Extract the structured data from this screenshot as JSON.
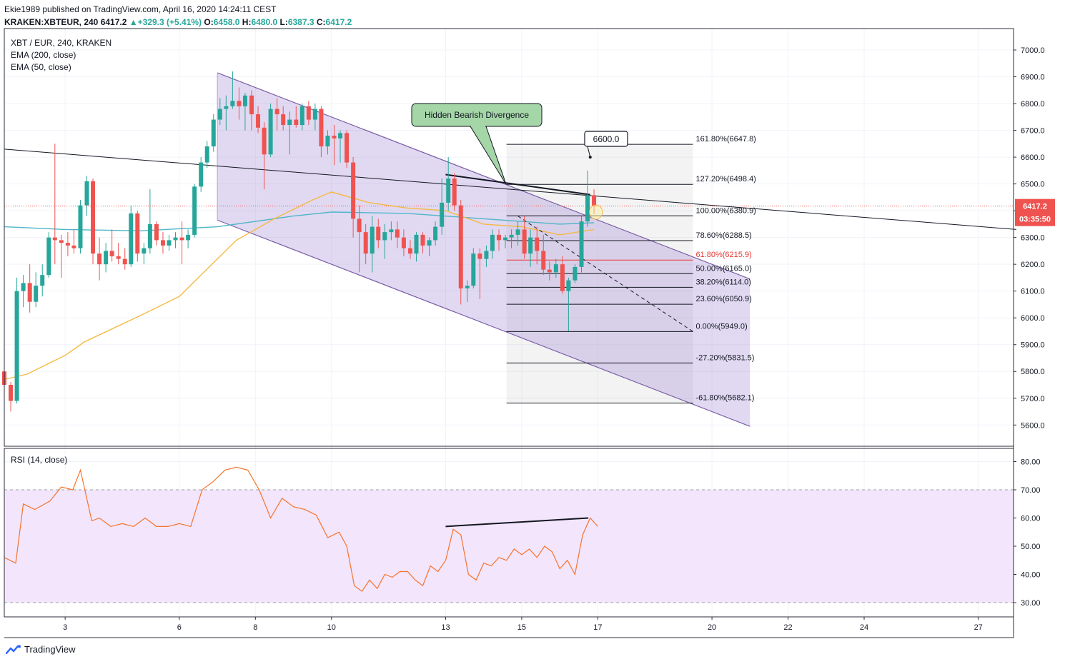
{
  "header": {
    "publisher": "Ekie1989 published on TradingView.com, April 16, 2020 14:24:11 CEST",
    "symbol": "KRAKEN:XBTEUR, 240",
    "last": "6417.2",
    "change": "+329.3 (+5.41%)",
    "o_label": "O:",
    "o_value": "6458.0",
    "h_label": "H:",
    "h_value": "6480.0",
    "l_label": "L:",
    "l_value": "6387.3",
    "c_label": "C:",
    "c_value": "6417.2"
  },
  "legend": {
    "title": "XBT / EUR, 240, KRAKEN",
    "ema200": "EMA (200, close)",
    "ema50": "EMA (50, close)",
    "rsi": "RSI (14, close)"
  },
  "annotations": {
    "callout": "Hidden Bearish Divergence",
    "target": "6600.0"
  },
  "price_badge": {
    "price": "6417.2",
    "countdown": "03:35:50"
  },
  "footer": {
    "brand": "TradingView"
  },
  "colors": {
    "up": "#26a69a",
    "down": "#ef5350",
    "ema200": "#4fb6c9",
    "ema50": "#f5b942",
    "channel": "#7b5ea7",
    "rsi": "#f5742e",
    "rsi_band": "#f3e5fb",
    "fib618": "#e53935"
  },
  "chart_data": [
    {
      "type": "candlestick",
      "title": "XBT / EUR, 240, KRAKEN",
      "ylim": [
        5550,
        7050
      ],
      "y_ticks": [
        "7000.0",
        "6900.0",
        "6800.0",
        "6700.0",
        "6600.0",
        "6500.0",
        "6400.0",
        "6300.0",
        "6200.0",
        "6100.0",
        "6000.0",
        "5900.0",
        "5800.0",
        "5700.0",
        "5600.0"
      ],
      "y_tick_values": [
        7000,
        6900,
        6800,
        6700,
        6600,
        6500,
        6400,
        6300,
        6200,
        6100,
        6000,
        5900,
        5800,
        5700,
        5600
      ],
      "x_ticks": [
        "3",
        "6",
        "8",
        "10",
        "13",
        "15",
        "17",
        "20",
        "22",
        "24",
        "27"
      ],
      "x_tick_days": [
        3,
        6,
        8,
        10,
        13,
        15,
        17,
        20,
        22,
        24,
        27
      ],
      "x_range_days": [
        1.4,
        28.0
      ],
      "candles": [
        [
          1.4,
          5800,
          5820,
          5720,
          5750
        ],
        [
          1.57,
          5750,
          5760,
          5650,
          5690
        ],
        [
          1.73,
          5690,
          6150,
          5680,
          6100
        ],
        [
          1.9,
          6100,
          6160,
          6040,
          6130
        ],
        [
          2.07,
          6130,
          6200,
          6020,
          6060
        ],
        [
          2.23,
          6060,
          6170,
          6040,
          6120
        ],
        [
          2.4,
          6120,
          6200,
          6080,
          6160
        ],
        [
          2.57,
          6160,
          6320,
          6150,
          6300
        ],
        [
          2.73,
          6300,
          6650,
          6200,
          6290
        ],
        [
          2.9,
          6290,
          6310,
          6150,
          6280
        ],
        [
          3.07,
          6280,
          6320,
          6230,
          6270
        ],
        [
          3.23,
          6270,
          6330,
          6240,
          6260
        ],
        [
          3.4,
          6260,
          6440,
          6240,
          6420
        ],
        [
          3.57,
          6420,
          6530,
          6380,
          6510
        ],
        [
          3.73,
          6510,
          6520,
          6200,
          6240
        ],
        [
          3.9,
          6240,
          6300,
          6140,
          6200
        ],
        [
          4.07,
          6200,
          6280,
          6170,
          6250
        ],
        [
          4.23,
          6250,
          6330,
          6210,
          6230
        ],
        [
          4.4,
          6230,
          6280,
          6200,
          6220
        ],
        [
          4.57,
          6220,
          6260,
          6180,
          6200
        ],
        [
          4.73,
          6200,
          6420,
          6190,
          6390
        ],
        [
          4.9,
          6390,
          6400,
          6210,
          6240
        ],
        [
          5.07,
          6240,
          6280,
          6200,
          6260
        ],
        [
          5.23,
          6260,
          6480,
          6240,
          6350
        ],
        [
          5.4,
          6350,
          6360,
          6270,
          6290
        ],
        [
          5.57,
          6290,
          6320,
          6240,
          6270
        ],
        [
          5.73,
          6270,
          6310,
          6250,
          6290
        ],
        [
          5.9,
          6290,
          6320,
          6260,
          6300
        ],
        [
          6.07,
          6300,
          6360,
          6200,
          6290
        ],
        [
          6.23,
          6290,
          6330,
          6260,
          6310
        ],
        [
          6.4,
          6310,
          6500,
          6300,
          6490
        ],
        [
          6.57,
          6490,
          6600,
          6470,
          6580
        ],
        [
          6.73,
          6580,
          6660,
          6560,
          6640
        ],
        [
          6.9,
          6640,
          6760,
          6620,
          6740
        ],
        [
          7.07,
          6740,
          6820,
          6720,
          6780
        ],
        [
          7.23,
          6780,
          6830,
          6700,
          6790
        ],
        [
          7.4,
          6790,
          6920,
          6780,
          6810
        ],
        [
          7.57,
          6810,
          6860,
          6740,
          6790
        ],
        [
          7.73,
          6790,
          6840,
          6700,
          6830
        ],
        [
          7.9,
          6830,
          6850,
          6700,
          6760
        ],
        [
          8.07,
          6760,
          6790,
          6690,
          6710
        ],
        [
          8.23,
          6710,
          6730,
          6480,
          6610
        ],
        [
          8.4,
          6610,
          6800,
          6600,
          6780
        ],
        [
          8.57,
          6780,
          6820,
          6700,
          6760
        ],
        [
          8.73,
          6760,
          6790,
          6700,
          6720
        ],
        [
          8.9,
          6720,
          6770,
          6610,
          6740
        ],
        [
          9.07,
          6740,
          6790,
          6710,
          6720
        ],
        [
          9.23,
          6720,
          6800,
          6700,
          6790
        ],
        [
          9.4,
          6790,
          6810,
          6720,
          6740
        ],
        [
          9.57,
          6740,
          6800,
          6700,
          6780
        ],
        [
          9.73,
          6780,
          6790,
          6600,
          6640
        ],
        [
          9.9,
          6640,
          6700,
          6610,
          6680
        ],
        [
          10.07,
          6680,
          6720,
          6570,
          6670
        ],
        [
          10.23,
          6670,
          6700,
          6580,
          6690
        ],
        [
          10.4,
          6690,
          6700,
          6560,
          6580
        ],
        [
          10.57,
          6580,
          6600,
          6300,
          6370
        ],
        [
          10.73,
          6370,
          6420,
          6170,
          6320
        ],
        [
          10.9,
          6320,
          6350,
          6200,
          6240
        ],
        [
          11.07,
          6240,
          6380,
          6170,
          6340
        ],
        [
          11.23,
          6340,
          6370,
          6260,
          6290
        ],
        [
          11.4,
          6290,
          6350,
          6220,
          6320
        ],
        [
          11.57,
          6320,
          6360,
          6290,
          6330
        ],
        [
          11.73,
          6330,
          6360,
          6260,
          6300
        ],
        [
          11.9,
          6300,
          6330,
          6230,
          6260
        ],
        [
          12.07,
          6260,
          6290,
          6220,
          6240
        ],
        [
          12.23,
          6240,
          6320,
          6210,
          6310
        ],
        [
          12.4,
          6310,
          6320,
          6240,
          6270
        ],
        [
          12.57,
          6270,
          6300,
          6230,
          6290
        ],
        [
          12.73,
          6290,
          6360,
          6270,
          6340
        ],
        [
          12.9,
          6340,
          6520,
          6310,
          6430
        ],
        [
          13.07,
          6430,
          6600,
          6400,
          6520
        ],
        [
          13.23,
          6520,
          6540,
          6400,
          6420
        ],
        [
          13.4,
          6420,
          6440,
          6050,
          6110
        ],
        [
          13.57,
          6110,
          6140,
          6060,
          6120
        ],
        [
          13.73,
          6120,
          6260,
          6110,
          6240
        ],
        [
          13.9,
          6240,
          6260,
          6070,
          6220
        ],
        [
          14.07,
          6220,
          6270,
          6190,
          6250
        ],
        [
          14.23,
          6250,
          6330,
          6220,
          6310
        ],
        [
          14.4,
          6310,
          6330,
          6250,
          6290
        ],
        [
          14.57,
          6290,
          6310,
          6260,
          6300
        ],
        [
          14.73,
          6300,
          6330,
          6260,
          6310
        ],
        [
          14.9,
          6310,
          6360,
          6270,
          6330
        ],
        [
          15.07,
          6330,
          6380,
          6220,
          6240
        ],
        [
          15.23,
          6240,
          6330,
          6190,
          6300
        ],
        [
          15.4,
          6300,
          6340,
          6200,
          6250
        ],
        [
          15.57,
          6250,
          6310,
          6160,
          6180
        ],
        [
          15.73,
          6180,
          6210,
          6140,
          6170
        ],
        [
          15.9,
          6170,
          6220,
          6150,
          6200
        ],
        [
          16.07,
          6200,
          6230,
          6090,
          6100
        ],
        [
          16.23,
          6100,
          6150,
          5950,
          6140
        ],
        [
          16.4,
          6140,
          6200,
          6130,
          6190
        ],
        [
          16.57,
          6190,
          6380,
          6170,
          6360
        ],
        [
          16.73,
          6360,
          6550,
          6340,
          6458
        ],
        [
          16.9,
          6458,
          6480,
          6387,
          6417
        ]
      ],
      "ema200": [
        [
          1.4,
          6340
        ],
        [
          3,
          6330
        ],
        [
          5,
          6325
        ],
        [
          7,
          6340
        ],
        [
          9,
          6380
        ],
        [
          10,
          6395
        ],
        [
          12,
          6390
        ],
        [
          14,
          6370
        ],
        [
          16,
          6350
        ],
        [
          16.9,
          6355
        ]
      ],
      "ema50": [
        [
          1.4,
          5770
        ],
        [
          2,
          5790
        ],
        [
          3,
          5860
        ],
        [
          3.5,
          5910
        ],
        [
          5,
          6010
        ],
        [
          6,
          6080
        ],
        [
          6.5,
          6150
        ],
        [
          7.5,
          6290
        ],
        [
          8.5,
          6370
        ],
        [
          9.5,
          6440
        ],
        [
          10,
          6470
        ],
        [
          11,
          6430
        ],
        [
          12,
          6410
        ],
        [
          13,
          6400
        ],
        [
          14,
          6350
        ],
        [
          15,
          6340
        ],
        [
          16,
          6310
        ],
        [
          16.9,
          6330
        ]
      ],
      "channel": {
        "upper": [
          [
            7.0,
            6915
          ],
          [
            19.5,
            6200
          ]
        ],
        "lower": [
          [
            7.0,
            6365
          ],
          [
            19.5,
            5650
          ]
        ],
        "right_edge": [
          [
            21.0,
            6145
          ],
          [
            21.0,
            5595
          ]
        ]
      },
      "trendline": [
        [
          1.4,
          6630
        ],
        [
          28.0,
          6330
        ]
      ],
      "divergence_price_line": [
        [
          13.0,
          6535
        ],
        [
          16.8,
          6460
        ]
      ],
      "projection_dashed": [
        [
          14.9,
          6380
        ],
        [
          19.5,
          5949
        ]
      ],
      "fib_box": {
        "x0_day": 14.6,
        "x1_day": 19.5
      },
      "fib_levels": [
        {
          "label": "161.80%(6647.8)",
          "value": 6647.8
        },
        {
          "label": "127.20%(6498.4)",
          "value": 6498.4
        },
        {
          "label": "100.00%(6380.9)",
          "value": 6380.9
        },
        {
          "label": "78.60%(6288.5)",
          "value": 6288.5
        },
        {
          "label": "61.80%(6215.9)",
          "value": 6215.9
        },
        {
          "label": "50.00%(6165.0)",
          "value": 6165.0
        },
        {
          "label": "38.20%(6114.0)",
          "value": 6114.0
        },
        {
          "label": "23.60%(6050.9)",
          "value": 6050.9
        },
        {
          "label": "0.00%(5949.0)",
          "value": 5949.0
        },
        {
          "label": "-27.20%(5831.5)",
          "value": 5831.5
        },
        {
          "label": "-61.80%(5682.1)",
          "value": 5682.1
        }
      ],
      "last_price": 6417.2,
      "target_price": 6600.0
    },
    {
      "type": "line",
      "title": "RSI (14, close)",
      "ylim": [
        26,
        84
      ],
      "y_ticks": [
        "80.00",
        "70.00",
        "60.00",
        "50.00",
        "40.00",
        "30.00"
      ],
      "y_tick_values": [
        80,
        70,
        60,
        50,
        40,
        30
      ],
      "band": [
        30,
        70
      ],
      "x": [
        1.4,
        1.7,
        1.9,
        2.2,
        2.6,
        2.9,
        3.2,
        3.4,
        3.7,
        3.9,
        4.2,
        4.5,
        4.8,
        5.1,
        5.4,
        5.7,
        6.0,
        6.3,
        6.6,
        6.9,
        7.2,
        7.5,
        7.8,
        8.1,
        8.4,
        8.7,
        9.0,
        9.3,
        9.6,
        9.9,
        10.2,
        10.4,
        10.6,
        10.8,
        11.0,
        11.2,
        11.4,
        11.6,
        11.8,
        12.0,
        12.2,
        12.4,
        12.6,
        12.8,
        13.0,
        13.2,
        13.4,
        13.6,
        13.8,
        14.0,
        14.2,
        14.4,
        14.6,
        14.8,
        15.0,
        15.2,
        15.4,
        15.6,
        15.8,
        16.0,
        16.2,
        16.4,
        16.6,
        16.8,
        17.0
      ],
      "values": [
        46,
        44,
        65,
        63,
        66,
        71,
        70,
        77,
        59,
        60,
        57,
        58,
        57,
        60,
        57,
        57,
        58,
        57,
        70,
        73,
        77,
        78,
        77,
        70,
        60,
        67,
        64,
        63,
        61,
        53,
        55,
        50,
        36,
        34,
        38,
        35,
        40,
        39,
        41,
        41,
        38,
        36,
        43,
        41,
        45,
        56,
        54,
        40,
        38,
        44,
        43,
        46,
        45,
        49,
        47,
        49,
        46,
        50,
        48,
        42,
        45,
        40,
        54,
        60,
        57
      ],
      "divergence_line": [
        [
          13.0,
          57
        ],
        [
          16.75,
          60
        ]
      ]
    }
  ]
}
